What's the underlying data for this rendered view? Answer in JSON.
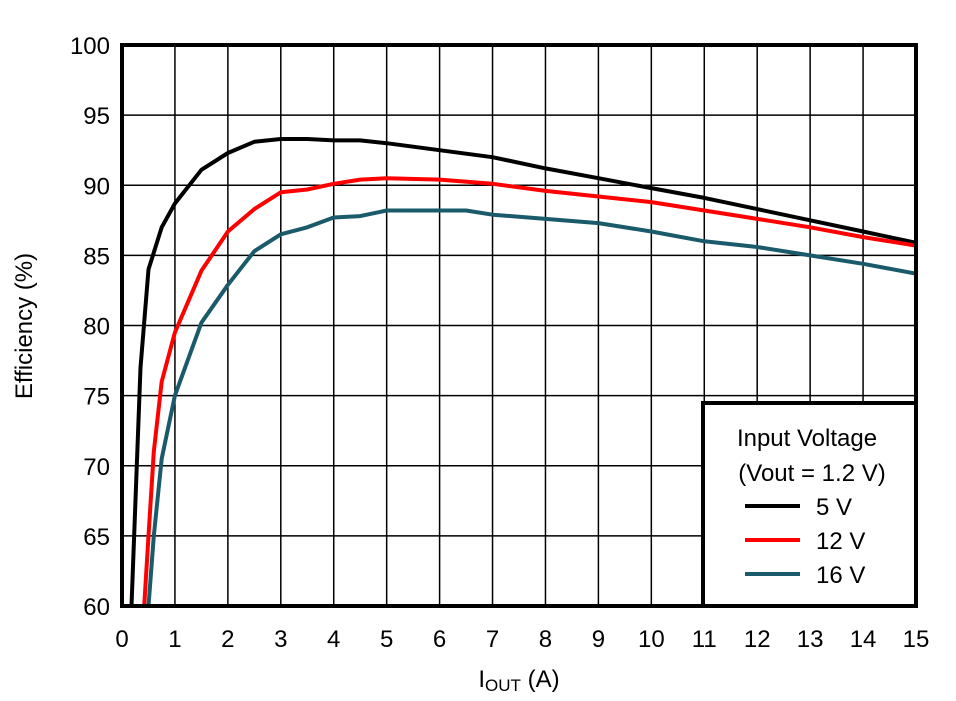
{
  "chart_data": {
    "type": "line",
    "title": "",
    "xlabel": "IOUT (A)",
    "xlabel_main": "I",
    "xlabel_sub": "OUT",
    "xlabel_unit": " (A)",
    "ylabel": "Efficiency (%)",
    "xlim": [
      0,
      15
    ],
    "ylim": [
      60,
      100
    ],
    "grid": true,
    "x_ticks": [
      0,
      1,
      2,
      3,
      4,
      5,
      6,
      7,
      8,
      9,
      10,
      11,
      12,
      13,
      14,
      15
    ],
    "y_ticks": [
      60,
      65,
      70,
      75,
      80,
      85,
      90,
      95,
      100
    ],
    "legend": {
      "position": "lower right",
      "title_line1": "Input Voltage",
      "title_line2": "(Vout = 1.2 V)"
    },
    "series": [
      {
        "name": "5 V",
        "color": "#000000",
        "x": [
          0.18,
          0.25,
          0.35,
          0.5,
          0.75,
          1.0,
          1.5,
          2.0,
          2.5,
          3.0,
          3.5,
          4.0,
          4.5,
          5.0,
          6.0,
          7.0,
          8.0,
          9.0,
          10.0,
          11.0,
          12.0,
          13.0,
          14.0,
          15.0
        ],
        "values": [
          60.0,
          67.0,
          77.0,
          84.0,
          87.0,
          88.7,
          91.1,
          92.3,
          93.1,
          93.3,
          93.3,
          93.2,
          93.2,
          93.0,
          92.5,
          92.0,
          91.2,
          90.5,
          89.8,
          89.1,
          88.3,
          87.5,
          86.7,
          85.9
        ]
      },
      {
        "name": "12 V",
        "color": "#ff0000",
        "x": [
          0.42,
          0.5,
          0.6,
          0.75,
          1.0,
          1.5,
          2.0,
          2.5,
          3.0,
          3.5,
          4.0,
          4.5,
          5.0,
          6.0,
          7.0,
          8.0,
          9.0,
          10.0,
          11.0,
          12.0,
          13.0,
          14.0,
          15.0
        ],
        "values": [
          60.0,
          65.0,
          71.0,
          76.0,
          79.5,
          83.9,
          86.7,
          88.3,
          89.5,
          89.7,
          90.1,
          90.4,
          90.5,
          90.4,
          90.1,
          89.6,
          89.2,
          88.8,
          88.2,
          87.6,
          87.0,
          86.3,
          85.7
        ]
      },
      {
        "name": "16 V",
        "color": "#1a5a6a",
        "x": [
          0.5,
          0.6,
          0.75,
          1.0,
          1.5,
          2.0,
          2.5,
          3.0,
          3.5,
          4.0,
          4.5,
          5.0,
          6.0,
          6.5,
          7.0,
          8.0,
          9.0,
          10.0,
          11.0,
          12.0,
          13.0,
          14.0,
          15.0
        ],
        "values": [
          60.0,
          65.0,
          70.5,
          75.0,
          80.2,
          82.9,
          85.3,
          86.5,
          87.0,
          87.7,
          87.8,
          88.2,
          88.2,
          88.2,
          87.9,
          87.6,
          87.3,
          86.7,
          86.0,
          85.6,
          85.0,
          84.4,
          83.7
        ]
      }
    ]
  }
}
